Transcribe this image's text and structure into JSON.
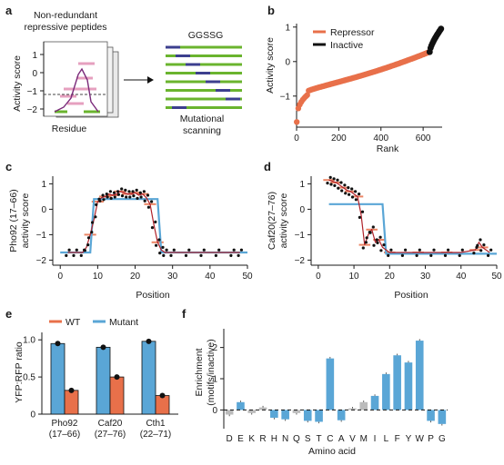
{
  "colors": {
    "repressor": "#e8704a",
    "inactive": "#111111",
    "wt": "#e8704a",
    "mutant": "#5aa6d6",
    "fit": "#5aa6d6",
    "grey": "#bbbbbb"
  },
  "panel_a": {
    "label": "a",
    "title_line1": "Non-redundant",
    "title_line2": "repressive peptides",
    "ylabel": "Activity score",
    "xlabel": "Residue",
    "yticks": [
      "1",
      "0",
      "−1",
      "−2"
    ],
    "linker": "GGSSG",
    "caption_line1": "Mutational",
    "caption_line2": "scanning"
  },
  "chart_data": [
    {
      "panel": "b",
      "type": "scatter",
      "xlabel": "Rank",
      "ylabel": "Activity score",
      "xlim": [
        0,
        690
      ],
      "ylim": [
        -1.9,
        1.1
      ],
      "xticks": [
        0,
        200,
        400,
        600
      ],
      "yticks": [
        1,
        0,
        -1
      ],
      "legend_position": "top-left",
      "series": [
        {
          "name": "Repressor",
          "x_range": [
            1,
            630
          ],
          "y_range": [
            -1.75,
            0.28
          ]
        },
        {
          "name": "Inactive",
          "x_range": [
            631,
            685
          ],
          "y_range": [
            0.28,
            0.95
          ]
        }
      ]
    },
    {
      "panel": "c",
      "type": "line",
      "xlabel": "Position",
      "ylabel_line1": "Pho92 (17–66)",
      "ylabel_line2": "activity score",
      "xlim": [
        -2,
        50
      ],
      "ylim": [
        -2.2,
        1.3
      ],
      "xticks": [
        0,
        10,
        20,
        30,
        40,
        50
      ],
      "yticks": [
        1,
        0,
        -1,
        -2
      ],
      "fit_x": [
        0,
        8,
        9,
        26,
        27,
        50
      ],
      "fit_y": [
        -1.7,
        -1.7,
        0.4,
        0.4,
        -1.7,
        -1.7
      ],
      "profile_x": [
        2,
        4,
        6,
        7,
        8,
        9,
        10,
        11,
        12,
        13,
        14,
        15,
        16,
        17,
        18,
        19,
        20,
        21,
        22,
        23,
        24,
        25,
        26,
        27,
        28,
        30,
        34,
        38,
        42,
        46,
        48
      ],
      "profile_y": [
        -1.7,
        -1.7,
        -1.7,
        -1.5,
        -1.0,
        -0.4,
        0.3,
        0.45,
        0.5,
        0.6,
        0.55,
        0.6,
        0.7,
        0.65,
        0.6,
        0.6,
        0.65,
        0.55,
        0.6,
        0.45,
        0.2,
        -0.6,
        -1.3,
        -1.6,
        -1.7,
        -1.7,
        -1.7,
        -1.7,
        -1.7,
        -1.7,
        -1.7
      ]
    },
    {
      "panel": "d",
      "type": "line",
      "xlabel": "Position",
      "ylabel_line1": "Caf20(27–76)",
      "ylabel_line2": "activity score",
      "xlim": [
        -2,
        50
      ],
      "ylim": [
        -2.2,
        1.3
      ],
      "xticks": [
        0,
        10,
        20,
        30,
        40,
        50
      ],
      "yticks": [
        1,
        0,
        -1,
        -2
      ],
      "fit_x": [
        3,
        18,
        19,
        50
      ],
      "fit_y": [
        0.2,
        0.2,
        -1.75,
        -1.75
      ],
      "profile_x": [
        3,
        4,
        5,
        6,
        7,
        8,
        9,
        10,
        11,
        12,
        13,
        14,
        15,
        16,
        17,
        18,
        20,
        24,
        28,
        32,
        36,
        40,
        44,
        45,
        46,
        48
      ],
      "profile_y": [
        1.15,
        1.1,
        1.05,
        0.95,
        0.85,
        0.75,
        0.7,
        0.6,
        0.5,
        -0.2,
        -1.4,
        -1.0,
        -0.8,
        -1.3,
        -1.2,
        -1.5,
        -1.7,
        -1.7,
        -1.7,
        -1.7,
        -1.7,
        -1.7,
        -1.6,
        -1.3,
        -1.5,
        -1.7
      ]
    },
    {
      "panel": "e",
      "type": "bar",
      "ylabel": "YFP:RFP ratio",
      "ylim": [
        0,
        1.1
      ],
      "yticks": [
        1.0,
        0.5,
        0
      ],
      "legend_position": "top",
      "categories_line1": [
        "Pho92",
        "Caf20",
        "Cth1"
      ],
      "categories_line2": [
        "(17–66)",
        "(27–76)",
        "(22–71)"
      ],
      "series": [
        {
          "name": "WT",
          "values": [
            0.32,
            0.5,
            0.25
          ]
        },
        {
          "name": "Mutant",
          "values": [
            0.95,
            0.9,
            0.98
          ]
        }
      ]
    },
    {
      "panel": "f",
      "type": "bar",
      "xlabel": "Amino acid",
      "ylabel_line1": "Enrichment",
      "ylabel_line2": "(motifs/inactive)",
      "ylim": [
        -0.6,
        2.6
      ],
      "yticks": [
        2,
        1,
        0
      ],
      "categories": [
        "D",
        "E",
        "K",
        "R",
        "H",
        "N",
        "Q",
        "S",
        "T",
        "C",
        "A",
        "V",
        "M",
        "I",
        "L",
        "F",
        "Y",
        "W",
        "P",
        "G"
      ],
      "values": [
        -0.15,
        0.25,
        -0.1,
        0.08,
        -0.25,
        -0.3,
        -0.1,
        -0.35,
        -0.38,
        1.65,
        -0.33,
        0.05,
        0.25,
        0.45,
        1.15,
        1.75,
        1.52,
        2.22,
        -0.35,
        -0.45
      ],
      "grey_categories": [
        "D",
        "K",
        "R",
        "Q",
        "V",
        "M"
      ]
    }
  ]
}
